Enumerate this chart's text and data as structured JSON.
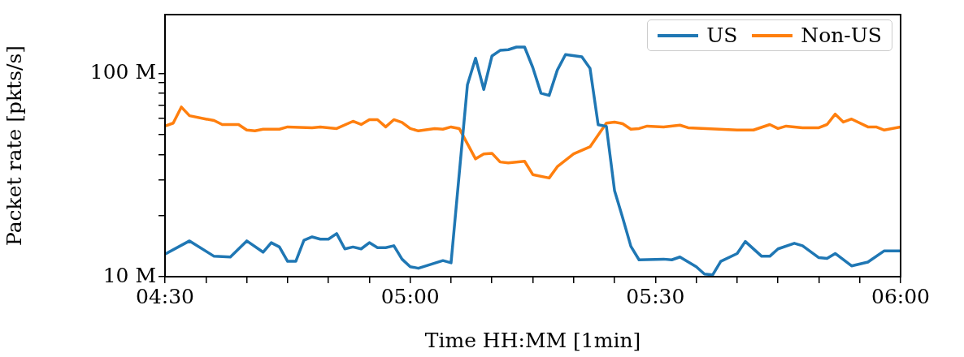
{
  "chart_data": {
    "type": "line",
    "xlabel": "Time HH:MM [1min]",
    "ylabel": "Packet rate [pkts/s]",
    "log": "y",
    "grid": false,
    "legend": "top right",
    "marker": "none",
    "line_style": "solid",
    "xlim": [
      4.5,
      6
    ],
    "xticks": [
      {
        "value": 4.5,
        "label": "04:30"
      },
      {
        "value": 4.5833,
        "label": null
      },
      {
        "value": 4.6667,
        "label": null
      },
      {
        "value": 4.75,
        "label": null
      },
      {
        "value": 4.8333,
        "label": null
      },
      {
        "value": 4.9167,
        "label": null
      },
      {
        "value": 5,
        "label": "05:00"
      },
      {
        "value": 5.0833,
        "label": null
      },
      {
        "value": 5.1667,
        "label": null
      },
      {
        "value": 5.25,
        "label": null
      },
      {
        "value": 5.3333,
        "label": null
      },
      {
        "value": 5.4167,
        "label": null
      },
      {
        "value": 5.5,
        "label": "05:30"
      },
      {
        "value": 5.5833,
        "label": null
      },
      {
        "value": 5.6667,
        "label": null
      },
      {
        "value": 5.75,
        "label": null
      },
      {
        "value": 5.8333,
        "label": null
      },
      {
        "value": 5.9167,
        "label": null
      },
      {
        "value": 6,
        "label": "06:00"
      }
    ],
    "ylim": [
      10,
      195
    ],
    "yticks": [
      {
        "value": 10,
        "label": "10 M"
      },
      {
        "value": 20,
        "label": null
      },
      {
        "value": 30,
        "label": null
      },
      {
        "value": 40,
        "label": null
      },
      {
        "value": 50,
        "label": null
      },
      {
        "value": 60,
        "label": null
      },
      {
        "value": 70,
        "label": null
      },
      {
        "value": 80,
        "label": null
      },
      {
        "value": 90,
        "label": null
      },
      {
        "value": 100,
        "label": "100 M"
      }
    ],
    "series": [
      {
        "name": "US",
        "color": "#1f77b4",
        "x": [
          4.5,
          4.55,
          4.6,
          4.6333,
          4.6667,
          4.7,
          4.7167,
          4.7333,
          4.75,
          4.7667,
          4.7833,
          4.8,
          4.8167,
          4.8333,
          4.85,
          4.8667,
          4.8833,
          4.9,
          4.9167,
          4.9333,
          4.95,
          4.9667,
          4.9833,
          5,
          5.0167,
          5.0667,
          5.0833,
          5.1167,
          5.1333,
          5.15,
          5.1667,
          5.1833,
          5.2,
          5.2167,
          5.2333,
          5.25,
          5.2667,
          5.2833,
          5.3,
          5.3167,
          5.35,
          5.3667,
          5.3833,
          5.4,
          5.4167,
          5.4333,
          5.45,
          5.4667,
          5.5167,
          5.5333,
          5.55,
          5.5833,
          5.6,
          5.6167,
          5.6333,
          5.6667,
          5.6833,
          5.7167,
          5.7333,
          5.75,
          5.7833,
          5.8,
          5.8333,
          5.85,
          5.8667,
          5.9,
          5.9333,
          5.9667,
          6
        ],
        "values": [
          12.9,
          15.0,
          12.6,
          12.5,
          15.0,
          13.2,
          14.7,
          14.0,
          11.9,
          11.9,
          15.1,
          15.7,
          15.3,
          15.3,
          16.3,
          13.7,
          14.0,
          13.7,
          14.7,
          13.9,
          13.9,
          14.2,
          12.2,
          11.2,
          11.0,
          12.0,
          11.7,
          88,
          119,
          83.5,
          122,
          130,
          131,
          135,
          135,
          107,
          80,
          78,
          104,
          124,
          121,
          106,
          56,
          55,
          26.5,
          19.5,
          14.1,
          12.1,
          12.2,
          12.1,
          12.5,
          11.2,
          10.3,
          10.2,
          11.9,
          13.0,
          14.9,
          12.6,
          12.6,
          13.7,
          14.6,
          14.2,
          12.4,
          12.3,
          13.0,
          11.3,
          11.8,
          13.4,
          13.4
        ]
      },
      {
        "name": "Non-US",
        "color": "#ff7f0e",
        "x": [
          4.5,
          4.5167,
          4.5333,
          4.55,
          4.5833,
          4.6,
          4.6167,
          4.65,
          4.6667,
          4.6833,
          4.7,
          4.7333,
          4.75,
          4.8,
          4.8167,
          4.85,
          4.8833,
          4.9,
          4.9167,
          4.9333,
          4.95,
          4.9667,
          4.9833,
          5,
          5.0167,
          5.05,
          5.0667,
          5.0833,
          5.1,
          5.1333,
          5.15,
          5.1667,
          5.1833,
          5.2,
          5.2333,
          5.25,
          5.2833,
          5.3,
          5.3333,
          5.3667,
          5.4,
          5.4167,
          5.4333,
          5.45,
          5.4667,
          5.4833,
          5.5167,
          5.55,
          5.5667,
          5.6667,
          5.7,
          5.7333,
          5.75,
          5.7667,
          5.8,
          5.8333,
          5.85,
          5.8667,
          5.8833,
          5.9,
          5.9333,
          5.95,
          5.9667,
          6
        ],
        "values": [
          55.1,
          57,
          68.4,
          62,
          59.7,
          58.7,
          56.1,
          56.1,
          52.7,
          52.2,
          53.2,
          53.2,
          54.6,
          54.1,
          54.6,
          53.6,
          58.2,
          56.1,
          59.3,
          59.3,
          54.6,
          59.3,
          57.5,
          53.6,
          52.2,
          53.6,
          53.2,
          54.6,
          53.6,
          38.0,
          40.2,
          40.5,
          36.7,
          36.3,
          37.0,
          31.8,
          30.6,
          34.8,
          40.2,
          43.6,
          57,
          57.7,
          56.6,
          53.2,
          53.6,
          55.1,
          54.6,
          55.7,
          54.1,
          52.7,
          52.7,
          56.1,
          53.6,
          55.1,
          54.1,
          54.1,
          56.1,
          63.1,
          57.7,
          59.7,
          54.6,
          54.6,
          52.7,
          54.6
        ]
      }
    ]
  }
}
